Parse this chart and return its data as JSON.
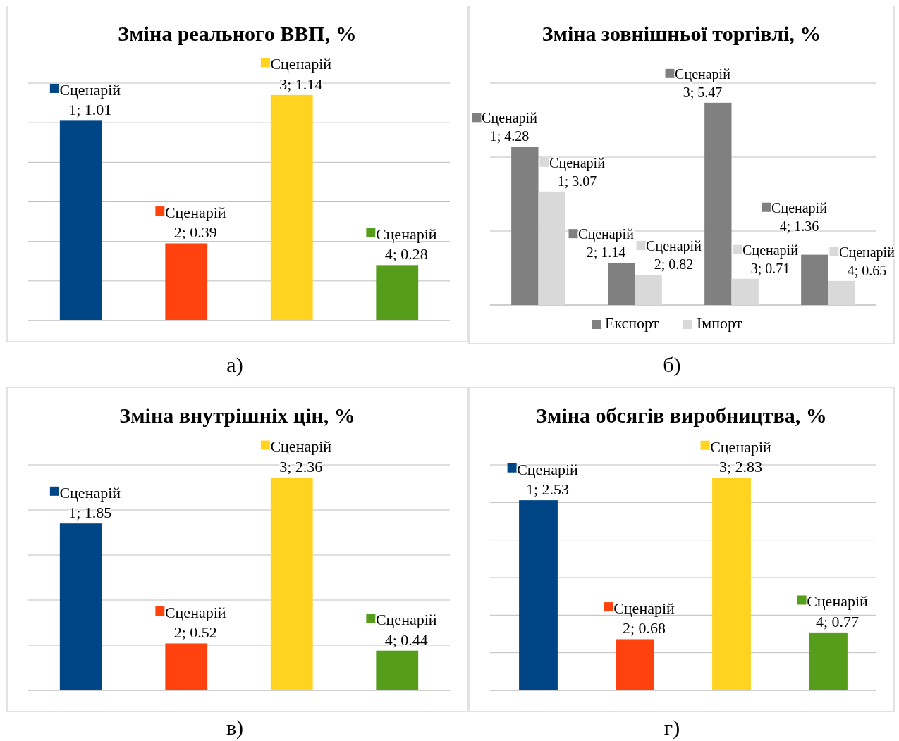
{
  "chart_data": [
    {
      "type": "bar",
      "title": "Зміна реального ВВП, %",
      "categories": [
        null,
        null,
        null,
        null
      ],
      "values": [
        1.01,
        0.39,
        1.14,
        0.28
      ],
      "colors": [
        "#004586",
        "#ff420e",
        "#ffd320",
        "#579d1c"
      ],
      "value_labels": [
        "Сценарій 1; 1.01",
        "Сценарій 2; 0.39",
        "Сценарій 3; 1.14",
        "Сценарій 4; 0.28"
      ],
      "ylim": [
        0,
        1.2
      ],
      "yticks": [
        {
          "value": 0,
          "label": null
        },
        {
          "value": 0.2,
          "label": null
        },
        {
          "value": 0.4,
          "label": null
        },
        {
          "value": 0.6,
          "label": null
        },
        {
          "value": 0.8,
          "label": null
        },
        {
          "value": 1,
          "label": null
        },
        {
          "value": 1.2,
          "label": null
        }
      ],
      "grid": "y",
      "annotations": [
        "а)"
      ]
    },
    {
      "type": "bar",
      "title": "Зміна зовнішньої торгівлі, %",
      "categories": [
        null,
        null,
        null,
        null
      ],
      "series": [
        {
          "name": "Експорт",
          "color": "#808080",
          "values": [
            4.28,
            1.14,
            5.47,
            1.36
          ],
          "value_labels": [
            "Сценарій 1; 4.28",
            "Сценарій 2; 1.14",
            "Сценарій 3; 5.47",
            "Сценарій 4; 1.36"
          ]
        },
        {
          "name": "Імпорт",
          "color": "#d9d9d9",
          "values": [
            3.07,
            0.82,
            0.71,
            0.65
          ],
          "value_labels": [
            "Сценарій 1; 3.07",
            "Сценарій 2; 0.82",
            "Сценарій 3; 0.71",
            "Сценарій 4; 0.65"
          ]
        }
      ],
      "ylim": [
        0,
        6
      ],
      "yticks": [
        {
          "value": 0,
          "label": null
        },
        {
          "value": 1,
          "label": null
        },
        {
          "value": 2,
          "label": null
        },
        {
          "value": 3,
          "label": null
        },
        {
          "value": 4,
          "label": null
        },
        {
          "value": 5,
          "label": null
        },
        {
          "value": 6,
          "label": null
        }
      ],
      "grid": "y",
      "legend": "bottom",
      "annotations": [
        "б)"
      ]
    },
    {
      "type": "bar",
      "title": "Зміна внутрішніх цін, %",
      "categories": [
        null,
        null,
        null,
        null
      ],
      "values": [
        1.85,
        0.52,
        2.36,
        0.44
      ],
      "colors": [
        "#004586",
        "#ff420e",
        "#ffd320",
        "#579d1c"
      ],
      "value_labels": [
        "Сценарій 1; 1.85",
        "Сценарій 2; 0.52",
        "Сценарій 3; 2.36",
        "Сценарій 4; 0.44"
      ],
      "ylim": [
        0,
        2.5
      ],
      "yticks": [
        {
          "value": 0,
          "label": null
        },
        {
          "value": 0.5,
          "label": null
        },
        {
          "value": 1,
          "label": null
        },
        {
          "value": 1.5,
          "label": null
        },
        {
          "value": 2,
          "label": null
        },
        {
          "value": 2.5,
          "label": null
        }
      ],
      "grid": "y",
      "annotations": [
        "в)"
      ]
    },
    {
      "type": "bar",
      "title": "Зміна обсягів виробництва, %",
      "categories": [
        null,
        null,
        null,
        null
      ],
      "values": [
        2.53,
        0.68,
        2.83,
        0.77
      ],
      "colors": [
        "#004586",
        "#ff420e",
        "#ffd320",
        "#579d1c"
      ],
      "value_labels": [
        "Сценарій 1; 2.53",
        "Сценарій 2; 0.68",
        "Сценарій 3; 2.83",
        "Сценарій 4; 0.77"
      ],
      "ylim": [
        0,
        3
      ],
      "yticks": [
        {
          "value": 0,
          "label": null
        },
        {
          "value": 0.5,
          "label": null
        },
        {
          "value": 1,
          "label": null
        },
        {
          "value": 1.5,
          "label": null
        },
        {
          "value": 2,
          "label": null
        },
        {
          "value": 2.5,
          "label": null
        },
        {
          "value": 3,
          "label": null
        }
      ],
      "grid": "y",
      "annotations": [
        "г)"
      ]
    }
  ]
}
